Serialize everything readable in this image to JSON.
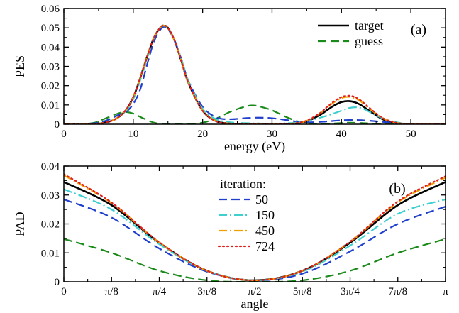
{
  "chart_data": [
    {
      "type": "line",
      "panel_label": "(a)",
      "xlabel": "energy (eV)",
      "ylabel": "PES",
      "xlim": [
        0,
        55
      ],
      "ylim": [
        0,
        0.06
      ],
      "x_ticks": [
        0,
        10,
        20,
        30,
        40,
        50
      ],
      "x_tick_labels": [
        "0",
        "10",
        "20",
        "30",
        "40",
        "50"
      ],
      "y_ticks": [
        0,
        0.01,
        0.02,
        0.03,
        0.04,
        0.05,
        0.06
      ],
      "y_tick_labels": [
        "0",
        "0.01",
        "0.02",
        "0.03",
        "0.04",
        "0.05",
        "0.06"
      ],
      "legend": {
        "position": "top-right",
        "entries": [
          {
            "label": "target",
            "color": "#000000",
            "dash": "solid"
          },
          {
            "label": "guess",
            "color": "#1a8a1a",
            "dash": "dashed"
          }
        ]
      },
      "series": [
        {
          "name": "target",
          "color": "#000000",
          "dash": "solid",
          "x": [
            0,
            5,
            8,
            10,
            12,
            13,
            14,
            14.5,
            15,
            16,
            17,
            18,
            20,
            22,
            24,
            26,
            28,
            30,
            33,
            35,
            37,
            38,
            39,
            40,
            41,
            42,
            43,
            44,
            46,
            48,
            50,
            55
          ],
          "y": [
            0,
            0.0003,
            0.004,
            0.014,
            0.035,
            0.045,
            0.0505,
            0.051,
            0.05,
            0.043,
            0.032,
            0.021,
            0.007,
            0.0015,
            0.0004,
            0.0002,
            0.0001,
            0.0001,
            0.0003,
            0.0015,
            0.005,
            0.0075,
            0.0098,
            0.0115,
            0.012,
            0.0113,
            0.0095,
            0.007,
            0.0025,
            0.0006,
            0.0001,
            0
          ]
        },
        {
          "name": "guess",
          "color": "#1a8a1a",
          "dash": "dashed",
          "x": [
            0,
            4,
            6,
            8,
            9,
            10,
            11,
            12,
            13,
            14,
            16,
            18,
            20,
            22,
            24,
            26,
            27,
            28,
            30,
            32,
            34,
            36,
            38,
            39,
            41,
            43,
            45,
            48,
            52,
            55
          ],
          "y": [
            0,
            0.0005,
            0.003,
            0.0058,
            0.0063,
            0.0055,
            0.0038,
            0.0022,
            0.0008,
            0.0002,
            0,
            0,
            0.0008,
            0.003,
            0.0065,
            0.009,
            0.0097,
            0.0094,
            0.0072,
            0.0038,
            0.0012,
            0.0003,
            0.0002,
            0.0004,
            0.0008,
            0.0006,
            0.0002,
            0,
            0,
            0
          ]
        },
        {
          "name": "50",
          "color": "#1f3fcc",
          "dash": "dashed",
          "x": [
            0,
            5,
            8,
            9,
            10,
            11,
            12,
            13,
            14,
            14.5,
            15,
            16,
            17,
            18,
            20,
            22,
            24,
            26,
            28,
            30,
            32,
            34,
            36,
            38,
            40,
            42,
            44,
            46,
            48,
            50,
            55
          ],
          "y": [
            0,
            0.0008,
            0.005,
            0.0065,
            0.0105,
            0.018,
            0.031,
            0.043,
            0.0495,
            0.0505,
            0.0495,
            0.043,
            0.033,
            0.022,
            0.009,
            0.0035,
            0.0026,
            0.0031,
            0.0034,
            0.0031,
            0.0022,
            0.0012,
            0.001,
            0.0015,
            0.002,
            0.0022,
            0.0018,
            0.0012,
            0.0006,
            0.0002,
            0
          ]
        },
        {
          "name": "150",
          "color": "#3fcfcf",
          "dash": "dashdot",
          "x": [
            0,
            5,
            8,
            10,
            12,
            13,
            14,
            14.5,
            15,
            16,
            17,
            18,
            20,
            22,
            24,
            26,
            28,
            30,
            32,
            34,
            36,
            38,
            40,
            41,
            42,
            43,
            44,
            46,
            48,
            50,
            55
          ],
          "y": [
            0,
            0.0004,
            0.004,
            0.013,
            0.034,
            0.045,
            0.0505,
            0.051,
            0.05,
            0.043,
            0.033,
            0.022,
            0.008,
            0.0025,
            0.001,
            0.0006,
            0.0004,
            0.0003,
            0.0005,
            0.001,
            0.0025,
            0.0045,
            0.007,
            0.0083,
            0.0088,
            0.0082,
            0.0065,
            0.003,
            0.001,
            0.0002,
            0
          ]
        },
        {
          "name": "450",
          "color": "#f0a000",
          "dash": "dashdot",
          "x": [
            0,
            5,
            8,
            10,
            12,
            13,
            14,
            14.5,
            15,
            16,
            17,
            18,
            20,
            22,
            24,
            26,
            28,
            30,
            33,
            35,
            37,
            38,
            39,
            40,
            41,
            42,
            43,
            44,
            46,
            48,
            50,
            55
          ],
          "y": [
            0,
            0.0003,
            0.004,
            0.014,
            0.035,
            0.045,
            0.0505,
            0.051,
            0.05,
            0.043,
            0.032,
            0.021,
            0.007,
            0.0015,
            0.0004,
            0.0002,
            0.0001,
            0.0001,
            0.0004,
            0.0018,
            0.0058,
            0.0088,
            0.0115,
            0.0135,
            0.0142,
            0.0134,
            0.0112,
            0.0082,
            0.003,
            0.0007,
            0.0001,
            0
          ]
        },
        {
          "name": "724",
          "color": "#e02020",
          "dash": "dotted",
          "x": [
            0,
            5,
            8,
            10,
            12,
            13,
            14,
            14.5,
            15,
            16,
            17,
            18,
            20,
            22,
            24,
            26,
            28,
            30,
            33,
            35,
            37,
            38,
            39,
            40,
            41,
            42,
            43,
            44,
            46,
            48,
            50,
            55
          ],
          "y": [
            0,
            0.0003,
            0.004,
            0.014,
            0.035,
            0.045,
            0.0505,
            0.051,
            0.05,
            0.043,
            0.032,
            0.021,
            0.007,
            0.0015,
            0.0004,
            0.0002,
            0.0001,
            0.0001,
            0.0004,
            0.0019,
            0.006,
            0.0092,
            0.012,
            0.0141,
            0.0148,
            0.014,
            0.0117,
            0.0086,
            0.0031,
            0.0007,
            0.0001,
            0
          ]
        }
      ]
    },
    {
      "type": "line",
      "panel_label": "(b)",
      "xlabel": "angle",
      "ylabel": "PAD",
      "xlim": [
        0,
        3.14159
      ],
      "ylim": [
        0,
        0.04
      ],
      "x_ticks": [
        0,
        0.3927,
        0.7854,
        1.1781,
        1.5708,
        1.9635,
        2.3562,
        2.7489,
        3.14159
      ],
      "x_tick_labels": [
        "0",
        "π/8",
        "π/4",
        "3π/8",
        "π/2",
        "5π/8",
        "3π/4",
        "7π/8",
        "π"
      ],
      "y_ticks": [
        0,
        0.01,
        0.02,
        0.03,
        0.04
      ],
      "y_tick_labels": [
        "0",
        "0.01",
        "0.02",
        "0.03",
        "0.04"
      ],
      "legend": {
        "position": "top-center",
        "title": "iteration:",
        "entries": [
          {
            "label": "50",
            "color": "#1f3fcc",
            "dash": "dashed"
          },
          {
            "label": "150",
            "color": "#3fcfcf",
            "dash": "dashdot"
          },
          {
            "label": "450",
            "color": "#f0a000",
            "dash": "dashdot"
          },
          {
            "label": "724",
            "color": "#e02020",
            "dash": "dotted"
          }
        ]
      },
      "series": [
        {
          "name": "target",
          "color": "#000000",
          "dash": "solid",
          "x": [
            0,
            0.3927,
            0.7854,
            1.1781,
            1.5708,
            1.9635,
            2.3562,
            2.7489,
            3.14159
          ],
          "y": [
            0.0345,
            0.0265,
            0.0135,
            0.0038,
            0.0005,
            0.0038,
            0.0135,
            0.0265,
            0.0345
          ]
        },
        {
          "name": "guess",
          "color": "#1a8a1a",
          "dash": "dashed",
          "x": [
            0,
            0.3927,
            0.7854,
            1.1781,
            1.5708,
            1.9635,
            2.3562,
            2.7489,
            3.14159
          ],
          "y": [
            0.0148,
            0.01,
            0.0038,
            0.0005,
            0,
            0.0005,
            0.0038,
            0.01,
            0.0148
          ]
        },
        {
          "name": "50",
          "color": "#1f3fcc",
          "dash": "dashed",
          "x": [
            0,
            0.3927,
            0.7854,
            1.1781,
            1.5708,
            1.9635,
            2.3562,
            2.7489,
            3.14159
          ],
          "y": [
            0.0285,
            0.0222,
            0.0115,
            0.0035,
            0.0005,
            0.0028,
            0.0105,
            0.02,
            0.026
          ]
        },
        {
          "name": "150",
          "color": "#3fcfcf",
          "dash": "dashdot",
          "x": [
            0,
            0.3927,
            0.7854,
            1.1781,
            1.5708,
            1.9635,
            2.3562,
            2.7489,
            3.14159
          ],
          "y": [
            0.032,
            0.025,
            0.013,
            0.0038,
            0.0005,
            0.0035,
            0.0125,
            0.0235,
            0.0285
          ]
        },
        {
          "name": "450",
          "color": "#f0a000",
          "dash": "dashdot",
          "x": [
            0,
            0.3927,
            0.7854,
            1.1781,
            1.5708,
            1.9635,
            2.3562,
            2.7489,
            3.14159
          ],
          "y": [
            0.0368,
            0.0272,
            0.0136,
            0.0038,
            0.0005,
            0.0038,
            0.0138,
            0.0275,
            0.036
          ]
        },
        {
          "name": "724",
          "color": "#e02020",
          "dash": "dotted",
          "x": [
            0,
            0.3927,
            0.7854,
            1.1781,
            1.5708,
            1.9635,
            2.3562,
            2.7489,
            3.14159
          ],
          "y": [
            0.0372,
            0.0274,
            0.0137,
            0.0038,
            0.0005,
            0.0038,
            0.0139,
            0.0278,
            0.0365
          ]
        }
      ]
    }
  ]
}
